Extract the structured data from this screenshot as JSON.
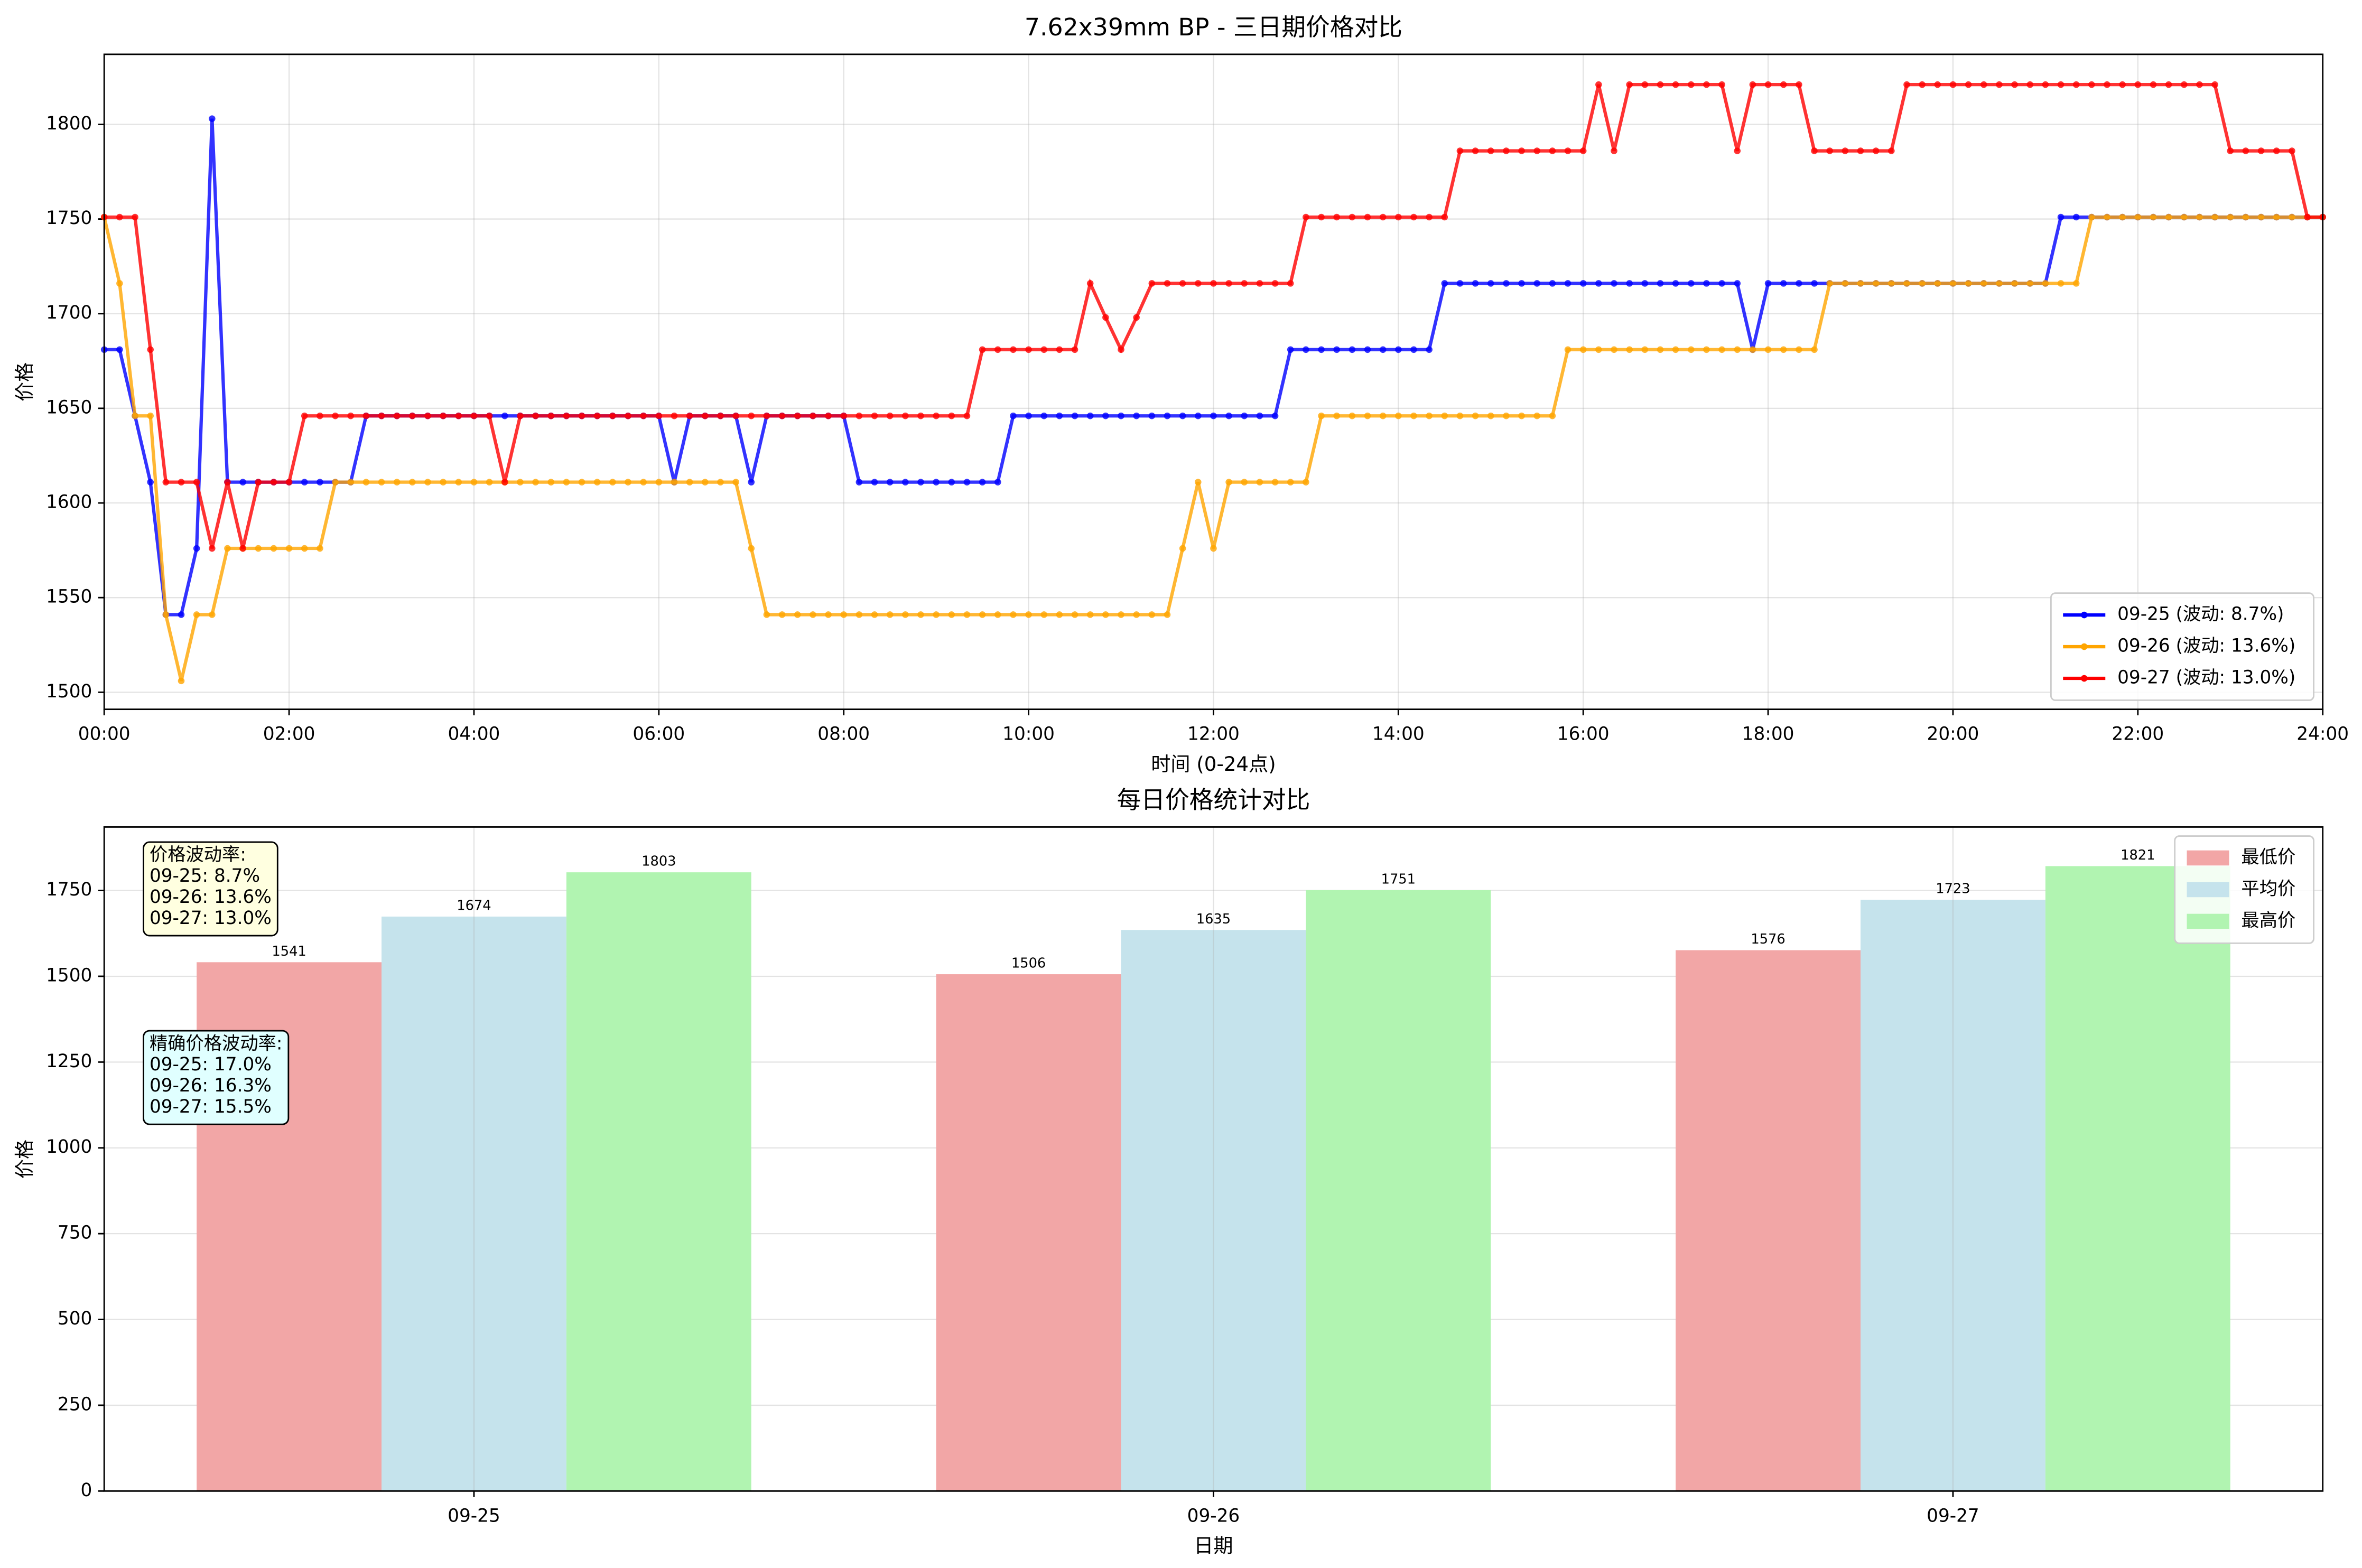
{
  "chart_data": [
    {
      "type": "line",
      "title": "7.62x39mm BP - 三日期价格对比",
      "x_label": "时间 (0-24点)",
      "y_label": "价格",
      "x": [
        0,
        10,
        20,
        30,
        40,
        50,
        60,
        70,
        80,
        90,
        100,
        110,
        120,
        130,
        140,
        150,
        160,
        170,
        180,
        190,
        200,
        210,
        220,
        230,
        240,
        250,
        260,
        270,
        280,
        290,
        300,
        310,
        320,
        330,
        340,
        350,
        360,
        370,
        380,
        390,
        400,
        410,
        420,
        430,
        440,
        450,
        460,
        470,
        480,
        490,
        500,
        510,
        520,
        530,
        540,
        550,
        560,
        570,
        580,
        590,
        600,
        610,
        620,
        630,
        640,
        650,
        660,
        670,
        680,
        690,
        700,
        710,
        720,
        730,
        740,
        750,
        760,
        770,
        780,
        790,
        800,
        810,
        820,
        830,
        840,
        850,
        860,
        870,
        880,
        890,
        900,
        910,
        920,
        930,
        940,
        950,
        960,
        970,
        980,
        990,
        1000,
        1010,
        1020,
        1030,
        1040,
        1050,
        1060,
        1070,
        1080,
        1090,
        1100,
        1110,
        1120,
        1130,
        1140,
        1150,
        1160,
        1170,
        1180,
        1190,
        1200,
        1210,
        1220,
        1230,
        1240,
        1250,
        1260,
        1270,
        1280,
        1290,
        1300,
        1310,
        1320,
        1330,
        1340,
        1350,
        1360,
        1370,
        1380,
        1390,
        1400,
        1410,
        1420,
        1430,
        1440
      ],
      "series": [
        {
          "name": "09-25 (波动: 8.7%)",
          "color": "#0000ff",
          "values": [
            1681,
            1681,
            1646,
            1611,
            1541,
            1541,
            1576,
            1803,
            1611,
            1611,
            1611,
            1611,
            1611,
            1611,
            1611,
            1611,
            1611,
            1646,
            1646,
            1646,
            1646,
            1646,
            1646,
            1646,
            1646,
            1646,
            1646,
            1646,
            1646,
            1646,
            1646,
            1646,
            1646,
            1646,
            1646,
            1646,
            1646,
            1611,
            1646,
            1646,
            1646,
            1646,
            1611,
            1646,
            1646,
            1646,
            1646,
            1646,
            1646,
            1611,
            1611,
            1611,
            1611,
            1611,
            1611,
            1611,
            1611,
            1611,
            1611,
            1646,
            1646,
            1646,
            1646,
            1646,
            1646,
            1646,
            1646,
            1646,
            1646,
            1646,
            1646,
            1646,
            1646,
            1646,
            1646,
            1646,
            1646,
            1681,
            1681,
            1681,
            1681,
            1681,
            1681,
            1681,
            1681,
            1681,
            1681,
            1716,
            1716,
            1716,
            1716,
            1716,
            1716,
            1716,
            1716,
            1716,
            1716,
            1716,
            1716,
            1716,
            1716,
            1716,
            1716,
            1716,
            1716,
            1716,
            1716,
            1681,
            1716,
            1716,
            1716,
            1716,
            1716,
            1716,
            1716,
            1716,
            1716,
            1716,
            1716,
            1716,
            1716,
            1716,
            1716,
            1716,
            1716,
            1716,
            1716,
            1751,
            1751,
            1751,
            1751,
            1751,
            1751,
            1751,
            1751,
            1751,
            1751,
            1751,
            1751,
            1751,
            1751,
            1751,
            1751,
            1751,
            1751
          ]
        },
        {
          "name": "09-26 (波动: 13.6%)",
          "color": "#ffa500",
          "values": [
            1751,
            1716,
            1646,
            1646,
            1541,
            1506,
            1541,
            1541,
            1576,
            1576,
            1576,
            1576,
            1576,
            1576,
            1576,
            1611,
            1611,
            1611,
            1611,
            1611,
            1611,
            1611,
            1611,
            1611,
            1611,
            1611,
            1611,
            1611,
            1611,
            1611,
            1611,
            1611,
            1611,
            1611,
            1611,
            1611,
            1611,
            1611,
            1611,
            1611,
            1611,
            1611,
            1576,
            1541,
            1541,
            1541,
            1541,
            1541,
            1541,
            1541,
            1541,
            1541,
            1541,
            1541,
            1541,
            1541,
            1541,
            1541,
            1541,
            1541,
            1541,
            1541,
            1541,
            1541,
            1541,
            1541,
            1541,
            1541,
            1541,
            1541,
            1576,
            1611,
            1576,
            1611,
            1611,
            1611,
            1611,
            1611,
            1611,
            1646,
            1646,
            1646,
            1646,
            1646,
            1646,
            1646,
            1646,
            1646,
            1646,
            1646,
            1646,
            1646,
            1646,
            1646,
            1646,
            1681,
            1681,
            1681,
            1681,
            1681,
            1681,
            1681,
            1681,
            1681,
            1681,
            1681,
            1681,
            1681,
            1681,
            1681,
            1681,
            1681,
            1716,
            1716,
            1716,
            1716,
            1716,
            1716,
            1716,
            1716,
            1716,
            1716,
            1716,
            1716,
            1716,
            1716,
            1716,
            1716,
            1716,
            1751,
            1751,
            1751,
            1751,
            1751,
            1751,
            1751,
            1751,
            1751,
            1751,
            1751,
            1751,
            1751,
            1751,
            1751,
            1751
          ]
        },
        {
          "name": "09-27 (波动: 13.0%)",
          "color": "#ff0000",
          "values": [
            1751,
            1751,
            1751,
            1681,
            1611,
            1611,
            1611,
            1576,
            1611,
            1576,
            1611,
            1611,
            1611,
            1646,
            1646,
            1646,
            1646,
            1646,
            1646,
            1646,
            1646,
            1646,
            1646,
            1646,
            1646,
            1646,
            1611,
            1646,
            1646,
            1646,
            1646,
            1646,
            1646,
            1646,
            1646,
            1646,
            1646,
            1646,
            1646,
            1646,
            1646,
            1646,
            1646,
            1646,
            1646,
            1646,
            1646,
            1646,
            1646,
            1646,
            1646,
            1646,
            1646,
            1646,
            1646,
            1646,
            1646,
            1681,
            1681,
            1681,
            1681,
            1681,
            1681,
            1681,
            1716,
            1698,
            1681,
            1698,
            1716,
            1716,
            1716,
            1716,
            1716,
            1716,
            1716,
            1716,
            1716,
            1716,
            1751,
            1751,
            1751,
            1751,
            1751,
            1751,
            1751,
            1751,
            1751,
            1751,
            1786,
            1786,
            1786,
            1786,
            1786,
            1786,
            1786,
            1786,
            1786,
            1821,
            1786,
            1821,
            1821,
            1821,
            1821,
            1821,
            1821,
            1821,
            1786,
            1821,
            1821,
            1821,
            1821,
            1786,
            1786,
            1786,
            1786,
            1786,
            1786,
            1821,
            1821,
            1821,
            1821,
            1821,
            1821,
            1821,
            1821,
            1821,
            1821,
            1821,
            1821,
            1821,
            1821,
            1821,
            1821,
            1821,
            1821,
            1821,
            1821,
            1821,
            1786,
            1786,
            1786,
            1786,
            1786,
            1751,
            1751
          ]
        }
      ],
      "xlim": [
        0,
        1440
      ],
      "xticks": [
        {
          "value": 0,
          "label": "00:00"
        },
        {
          "value": 120,
          "label": "02:00"
        },
        {
          "value": 240,
          "label": "04:00"
        },
        {
          "value": 360,
          "label": "06:00"
        },
        {
          "value": 480,
          "label": "08:00"
        },
        {
          "value": 600,
          "label": "10:00"
        },
        {
          "value": 720,
          "label": "12:00"
        },
        {
          "value": 840,
          "label": "14:00"
        },
        {
          "value": 960,
          "label": "16:00"
        },
        {
          "value": 1080,
          "label": "18:00"
        },
        {
          "value": 1200,
          "label": "20:00"
        },
        {
          "value": 1320,
          "label": "22:00"
        },
        {
          "value": 1440,
          "label": "24:00"
        }
      ],
      "ylim": [
        1491,
        1837
      ],
      "yticks": [
        1500,
        1550,
        1600,
        1650,
        1700,
        1750,
        1800
      ],
      "grid": true,
      "legend": "lower right"
    },
    {
      "type": "bar",
      "title": "每日价格统计对比",
      "x_label": "日期",
      "y_label": "价格",
      "categories": [
        "09-25",
        "09-26",
        "09-27"
      ],
      "series": [
        {
          "name": "最低价",
          "color": "#f2a6a6",
          "values": [
            1541,
            1506,
            1576
          ]
        },
        {
          "name": "平均价",
          "color": "#c5e3ec",
          "values": [
            1674,
            1635,
            1723
          ]
        },
        {
          "name": "最高价",
          "color": "#b1f4b1",
          "values": [
            1803,
            1751,
            1821
          ]
        }
      ],
      "ylim": [
        0,
        1935
      ],
      "yticks": [
        0,
        250,
        500,
        750,
        1000,
        1250,
        1500,
        1750
      ],
      "grid": true,
      "legend": "upper right",
      "annotations": [
        [
          "价格波动率:",
          "09-25: 8.7%",
          "09-26: 13.6%",
          "09-27: 13.0%"
        ],
        [
          "精确价格波动率:",
          "09-25: 17.0%",
          "09-26: 16.3%",
          "09-27: 15.5%"
        ]
      ]
    }
  ]
}
